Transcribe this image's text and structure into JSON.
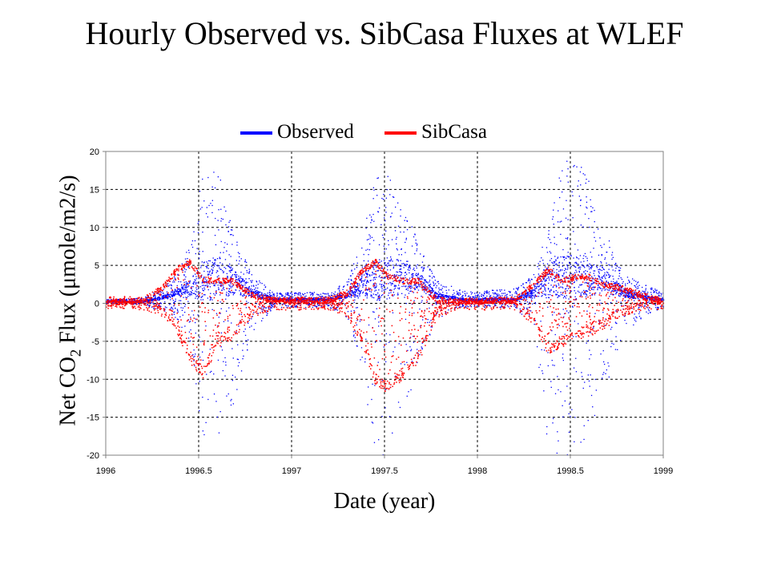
{
  "chart_data": {
    "type": "scatter",
    "title": "Hourly Observed vs. SibCasa Fluxes at WLEF",
    "xlabel": "Date (year)",
    "ylabel": {
      "pre": "Net CO",
      "sub": "2",
      "post": " Flux (μmole/m2/s)"
    },
    "xlim": [
      1996,
      1999
    ],
    "ylim": [
      -20,
      20
    ],
    "xticks": [
      1996,
      1996.5,
      1997,
      1997.5,
      1998,
      1998.5,
      1999
    ],
    "xtick_labels": [
      "1996",
      "1996.5",
      "1997",
      "1997.5",
      "1998",
      "1998.5",
      "1999"
    ],
    "yticks": [
      -20,
      -15,
      -10,
      -5,
      0,
      5,
      10,
      15,
      20
    ],
    "ytick_labels": [
      "-20",
      "-15",
      "-10",
      "-5",
      "0",
      "5",
      "10",
      "15",
      "20"
    ],
    "grid": true,
    "grid_style": "dashed",
    "legend_position": "top-center",
    "series": [
      {
        "name": "Observed",
        "color": "#0000ff",
        "style": "points",
        "x": [
          1996.0,
          1996.1,
          1996.2,
          1996.3,
          1996.38,
          1996.45,
          1996.52,
          1996.6,
          1996.68,
          1996.78,
          1996.9,
          1997.0,
          1997.1,
          1997.2,
          1997.3,
          1997.38,
          1997.45,
          1997.52,
          1997.6,
          1997.68,
          1997.78,
          1997.9,
          1998.0,
          1998.1,
          1998.2,
          1998.3,
          1998.38,
          1998.45,
          1998.52,
          1998.6,
          1998.68,
          1998.78,
          1998.9,
          1999.0
        ],
        "mean": [
          0.3,
          0.3,
          0.3,
          0.8,
          1.5,
          2.0,
          3.0,
          3.5,
          3.0,
          1.5,
          0.6,
          0.5,
          0.6,
          0.5,
          1.2,
          2.5,
          3.0,
          3.5,
          3.5,
          3.0,
          1.0,
          0.6,
          0.5,
          0.6,
          0.5,
          1.5,
          3.0,
          3.5,
          3.5,
          3.5,
          3.0,
          1.5,
          0.8,
          0.5
        ],
        "ymax": [
          0.6,
          0.6,
          0.8,
          2.0,
          4.0,
          8.0,
          17.0,
          18.0,
          10.0,
          4.0,
          1.5,
          1.5,
          1.5,
          1.5,
          3.0,
          9.0,
          18.0,
          17.0,
          13.0,
          8.0,
          3.0,
          2.0,
          1.5,
          2.0,
          2.0,
          4.0,
          10.0,
          18.0,
          20.0,
          16.0,
          10.0,
          4.0,
          2.5,
          1.5
        ],
        "ymin": [
          0.0,
          0.0,
          -0.2,
          -1.0,
          -2.0,
          -5.0,
          -19.0,
          -20.0,
          -14.0,
          -4.0,
          -0.5,
          -0.5,
          -0.5,
          -0.5,
          -2.0,
          -10.0,
          -20.0,
          -20.0,
          -15.0,
          -8.0,
          -2.0,
          -0.5,
          -0.5,
          -0.5,
          -0.5,
          -3.0,
          -20.0,
          -20.0,
          -20.0,
          -17.0,
          -12.0,
          -4.0,
          -1.5,
          -0.5
        ]
      },
      {
        "name": "SibCasa",
        "color": "#ff0000",
        "style": "points",
        "x": [
          1996.0,
          1996.1,
          1996.2,
          1996.3,
          1996.38,
          1996.45,
          1996.52,
          1996.6,
          1996.68,
          1996.78,
          1996.9,
          1997.0,
          1997.1,
          1997.2,
          1997.3,
          1997.38,
          1997.45,
          1997.52,
          1997.6,
          1997.68,
          1997.78,
          1997.9,
          1998.0,
          1998.1,
          1998.2,
          1998.3,
          1998.38,
          1998.45,
          1998.52,
          1998.6,
          1998.68,
          1998.78,
          1998.9,
          1999.0
        ],
        "upper": [
          0.3,
          0.3,
          0.5,
          2.0,
          4.5,
          5.5,
          3.2,
          3.0,
          3.0,
          1.2,
          0.5,
          0.5,
          0.5,
          0.5,
          1.5,
          4.5,
          5.5,
          3.5,
          3.0,
          3.0,
          0.5,
          0.4,
          0.3,
          0.5,
          0.5,
          2.5,
          4.5,
          3.0,
          3.5,
          3.5,
          2.5,
          2.0,
          1.0,
          0.3
        ],
        "lower": [
          0.2,
          0.2,
          0.0,
          -1.0,
          -3.0,
          -7.0,
          -9.0,
          -5.0,
          -4.0,
          -1.0,
          0.0,
          0.0,
          0.0,
          0.0,
          -1.0,
          -5.0,
          -10.0,
          -11.0,
          -9.0,
          -7.0,
          -1.0,
          0.0,
          0.0,
          0.0,
          0.0,
          -2.0,
          -6.0,
          -5.0,
          -4.5,
          -3.5,
          -2.5,
          -1.0,
          0.0,
          0.0
        ]
      }
    ]
  }
}
